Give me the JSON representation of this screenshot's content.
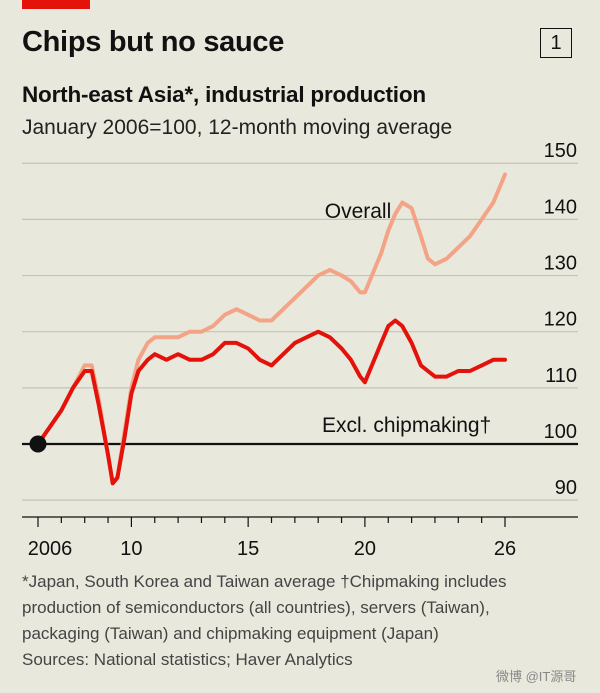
{
  "header": {
    "title": "Chips but no sauce",
    "badge": "1",
    "subtitle": "North-east Asia*, industrial production",
    "subsubtitle": "January 2006=100, 12-month moving average"
  },
  "colors": {
    "overall": "#f3a486",
    "excl": "#e3120b",
    "accent": "#e3120b",
    "grid": "#c4c3b8",
    "baseline": "#111111",
    "background": "#e9e8dd"
  },
  "chart_data": {
    "type": "line",
    "title": "Chips but no sauce",
    "subtitle": "North-east Asia*, industrial production",
    "ylabel": "January 2006=100, 12-month moving average",
    "ylim": [
      87,
      152
    ],
    "xlim": [
      2006,
      2026.6
    ],
    "y_ticks": [
      90,
      100,
      110,
      120,
      130,
      140,
      150
    ],
    "x_ticks": [
      2006,
      2007,
      2008,
      2009,
      2010,
      2011,
      2012,
      2013,
      2014,
      2015,
      2016,
      2017,
      2018,
      2019,
      2020,
      2021,
      2022,
      2023,
      2024,
      2025,
      2026
    ],
    "x_tick_labels": [
      {
        "x": 2006,
        "label": "2006"
      },
      {
        "x": 2010,
        "label": "10"
      },
      {
        "x": 2015,
        "label": "15"
      },
      {
        "x": 2020,
        "label": "20"
      },
      {
        "x": 2026,
        "label": "26"
      }
    ],
    "baseline": 100,
    "grid": true,
    "series": [
      {
        "name": "Overall",
        "label": "Overall",
        "points": [
          [
            2006,
            100
          ],
          [
            2006.5,
            103
          ],
          [
            2007,
            106
          ],
          [
            2007.5,
            110
          ],
          [
            2008,
            114
          ],
          [
            2008.3,
            114
          ],
          [
            2008.6,
            108
          ],
          [
            2009,
            98
          ],
          [
            2009.2,
            93
          ],
          [
            2009.4,
            94
          ],
          [
            2009.7,
            102
          ],
          [
            2010,
            110
          ],
          [
            2010.3,
            115
          ],
          [
            2010.7,
            118
          ],
          [
            2011,
            119
          ],
          [
            2011.5,
            119
          ],
          [
            2012,
            119
          ],
          [
            2012.5,
            120
          ],
          [
            2013,
            120
          ],
          [
            2013.5,
            121
          ],
          [
            2014,
            123
          ],
          [
            2014.5,
            124
          ],
          [
            2015,
            123
          ],
          [
            2015.5,
            122
          ],
          [
            2016,
            122
          ],
          [
            2016.5,
            124
          ],
          [
            2017,
            126
          ],
          [
            2017.5,
            128
          ],
          [
            2018,
            130
          ],
          [
            2018.5,
            131
          ],
          [
            2019,
            130
          ],
          [
            2019.4,
            129
          ],
          [
            2019.8,
            127
          ],
          [
            2020,
            127
          ],
          [
            2020.3,
            130
          ],
          [
            2020.7,
            134
          ],
          [
            2021,
            138
          ],
          [
            2021.3,
            141
          ],
          [
            2021.6,
            143
          ],
          [
            2022,
            142
          ],
          [
            2022.4,
            137
          ],
          [
            2022.7,
            133
          ],
          [
            2023,
            132
          ],
          [
            2023.5,
            133
          ],
          [
            2024,
            135
          ],
          [
            2024.5,
            137
          ],
          [
            2025,
            140
          ],
          [
            2025.5,
            143
          ],
          [
            2026,
            148
          ]
        ]
      },
      {
        "name": "Excl. chipmaking",
        "label": "Excl. chipmaking†",
        "points": [
          [
            2006,
            100
          ],
          [
            2006.5,
            103
          ],
          [
            2007,
            106
          ],
          [
            2007.5,
            110
          ],
          [
            2008,
            113
          ],
          [
            2008.3,
            113
          ],
          [
            2008.6,
            107
          ],
          [
            2009,
            98
          ],
          [
            2009.2,
            93
          ],
          [
            2009.4,
            94
          ],
          [
            2009.7,
            101
          ],
          [
            2010,
            109
          ],
          [
            2010.3,
            113
          ],
          [
            2010.7,
            115
          ],
          [
            2011,
            116
          ],
          [
            2011.5,
            115
          ],
          [
            2012,
            116
          ],
          [
            2012.5,
            115
          ],
          [
            2013,
            115
          ],
          [
            2013.5,
            116
          ],
          [
            2014,
            118
          ],
          [
            2014.5,
            118
          ],
          [
            2015,
            117
          ],
          [
            2015.5,
            115
          ],
          [
            2016,
            114
          ],
          [
            2016.5,
            116
          ],
          [
            2017,
            118
          ],
          [
            2017.5,
            119
          ],
          [
            2018,
            120
          ],
          [
            2018.5,
            119
          ],
          [
            2019,
            117
          ],
          [
            2019.4,
            115
          ],
          [
            2019.8,
            112
          ],
          [
            2020,
            111
          ],
          [
            2020.3,
            114
          ],
          [
            2020.7,
            118
          ],
          [
            2021,
            121
          ],
          [
            2021.3,
            122
          ],
          [
            2021.6,
            121
          ],
          [
            2022,
            118
          ],
          [
            2022.4,
            114
          ],
          [
            2022.7,
            113
          ],
          [
            2023,
            112
          ],
          [
            2023.5,
            112
          ],
          [
            2024,
            113
          ],
          [
            2024.5,
            113
          ],
          [
            2025,
            114
          ],
          [
            2025.5,
            115
          ],
          [
            2026,
            115
          ]
        ]
      }
    ]
  },
  "footnote": {
    "line1": "*Japan, South Korea and Taiwan average   †Chipmaking includes",
    "line2": "production of semiconductors (all countries), servers (Taiwan),",
    "line3": "packaging (Taiwan) and chipmaking equipment (Japan)",
    "line4": "Sources: National statistics; Haver Analytics"
  },
  "watermark": "微博 @IT源哥"
}
